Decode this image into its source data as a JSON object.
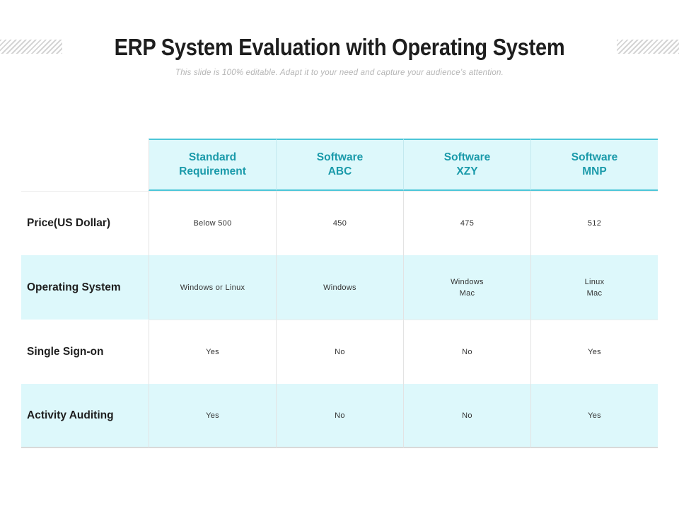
{
  "header": {
    "title": "ERP System Evaluation with Operating System",
    "subtitle": "This slide is 100% editable. Adapt it to your need and capture your audience’s attention."
  },
  "table": {
    "columns": [
      {
        "line1": "Standard",
        "line2": "Requirement"
      },
      {
        "line1": "Software",
        "line2": "ABC"
      },
      {
        "line1": "Software",
        "line2": "XZY"
      },
      {
        "line1": "Software",
        "line2": "MNP"
      }
    ],
    "rows": [
      {
        "label": "Price(US Dollar)",
        "cells": [
          [
            "Below 500"
          ],
          [
            "450"
          ],
          [
            "475"
          ],
          [
            "512"
          ]
        ]
      },
      {
        "label": "Operating System",
        "cells": [
          [
            "Windows or Linux"
          ],
          [
            "Windows"
          ],
          [
            "Windows",
            "Mac"
          ],
          [
            "Linux",
            "Mac"
          ]
        ]
      },
      {
        "label": "Single Sign-on",
        "cells": [
          [
            "Yes"
          ],
          [
            "No"
          ],
          [
            "No"
          ],
          [
            "Yes"
          ]
        ]
      },
      {
        "label": "Activity Auditing",
        "cells": [
          [
            "Yes"
          ],
          [
            "No"
          ],
          [
            "No"
          ],
          [
            "Yes"
          ]
        ]
      }
    ]
  },
  "colors": {
    "accent": "#4cc6d8",
    "header_text": "#1a9aaa",
    "row_tint": "#ddf8fb"
  }
}
